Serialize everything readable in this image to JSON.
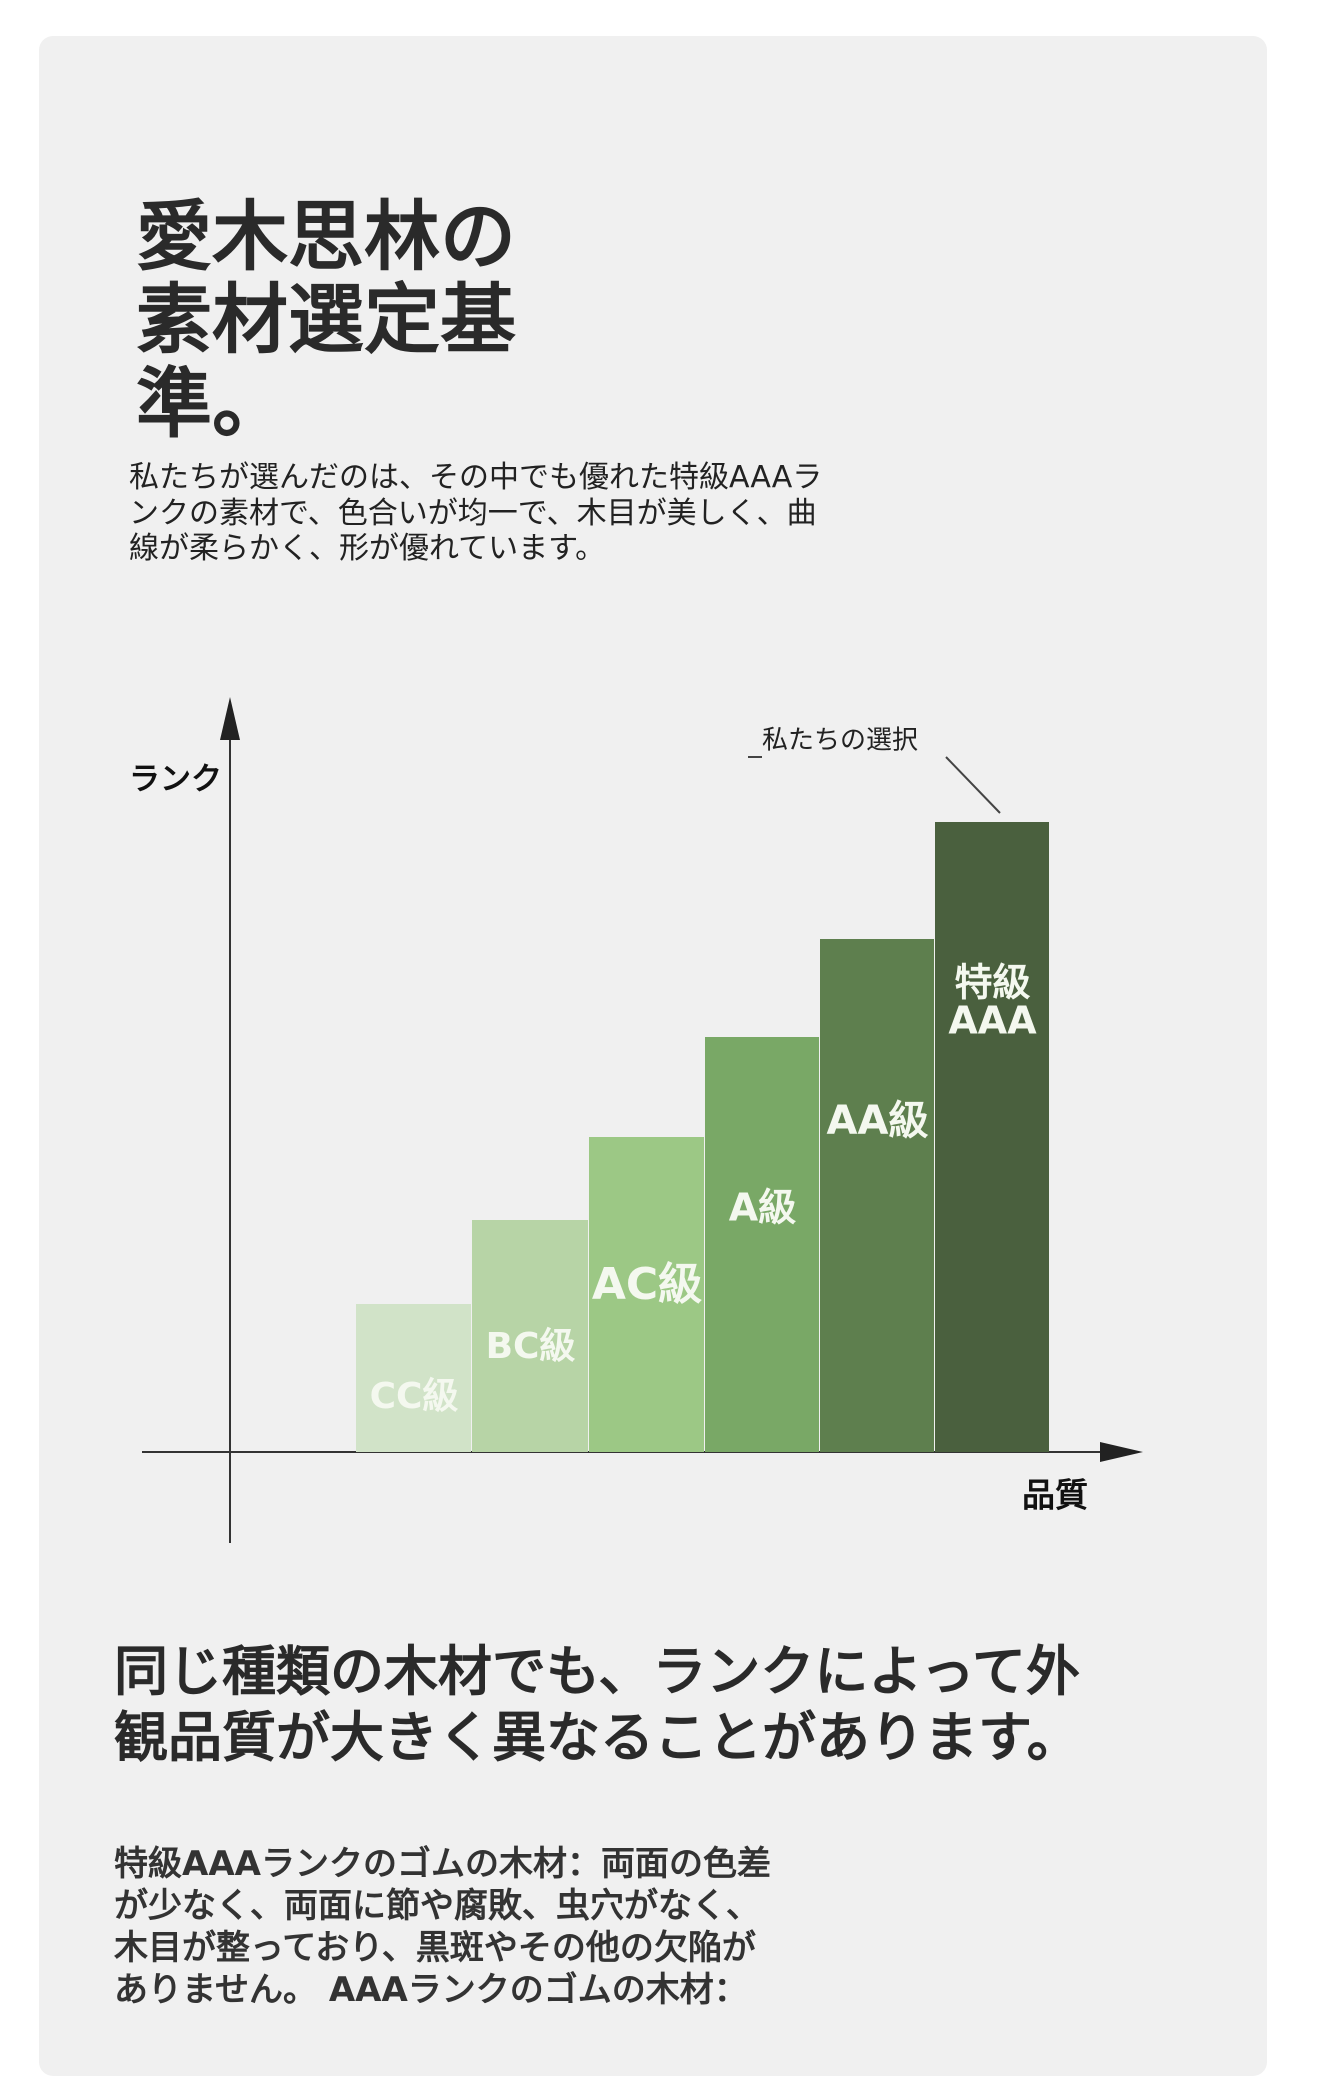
{
  "title": {
    "lines": [
      "愛木思林の",
      "素材選定基",
      "準。"
    ]
  },
  "intro": {
    "lines": [
      "私たちが選んだのは、その中でも優れた特級AAAラ",
      "ンクの素材で、色合いが均一で、木目が美しく、曲",
      "線が柔らかく、形が優れています。"
    ]
  },
  "diagram": {
    "y_axis_label": "ランク",
    "x_axis_label": "品質",
    "annotation": "私たちの選択",
    "steps": [
      {
        "label": [
          "CC級"
        ]
      },
      {
        "label": [
          "BC級"
        ]
      },
      {
        "label": [
          "AC級"
        ]
      },
      {
        "label": [
          "A級"
        ]
      },
      {
        "label": [
          "AA級"
        ]
      },
      {
        "label": [
          "特級",
          "AAA"
        ]
      }
    ]
  },
  "heading": {
    "lines": [
      "同じ種類の木材でも、ランクによって外",
      "観品質が大きく異なることがあります。"
    ]
  },
  "body": {
    "lines": [
      "特級AAAランクのゴムの木材：両面の色差",
      "が少なく、両面に節や腐敗、虫穴がなく、",
      "木目が整っており、黒斑やその他の欠陥が",
      "ありません。 AAAランクのゴムの木材："
    ]
  }
}
